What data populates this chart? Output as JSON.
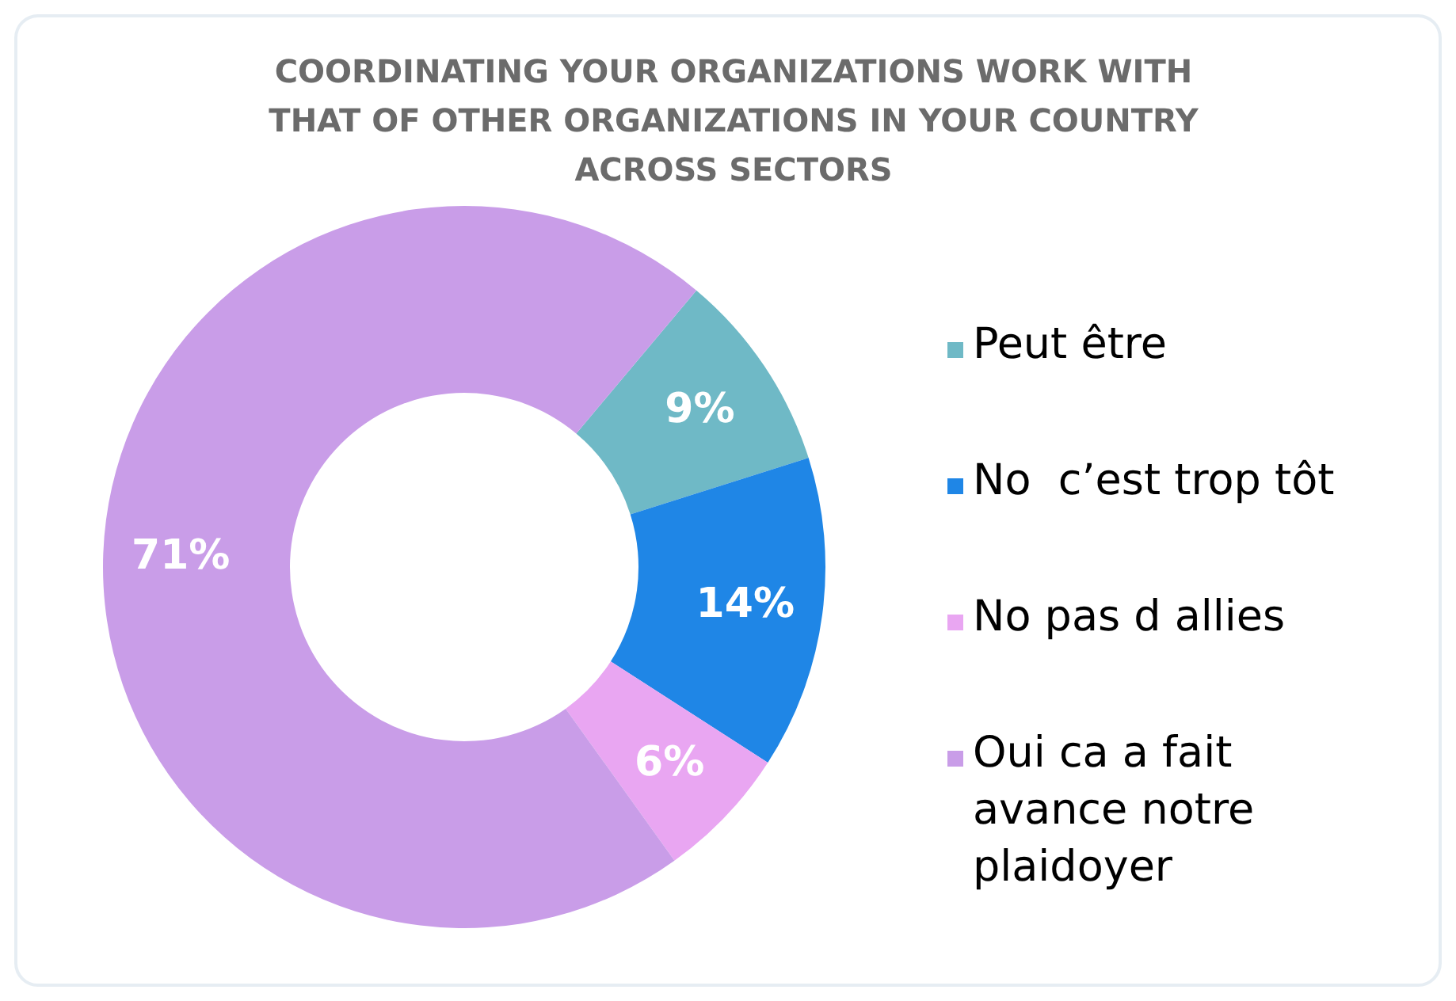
{
  "chart_data": {
    "type": "donut",
    "title": "COORDINATING YOUR ORGANIZATIONS WORK WITH THAT OF OTHER ORGANIZATIONS IN YOUR COUNTRY ACROSS SECTORS",
    "categories": [
      "Peut être",
      "No  c’est trop tôt",
      "No pas d allies",
      "Oui ca a fait avance notre plaidoyer"
    ],
    "values": [
      9,
      14,
      6,
      71
    ],
    "colors": [
      "#6fb9c6",
      "#1f86e6",
      "#e9a6f2",
      "#c99de8"
    ],
    "value_labels": [
      "9%",
      "14%",
      "6%",
      "71%"
    ],
    "legend": "right"
  }
}
